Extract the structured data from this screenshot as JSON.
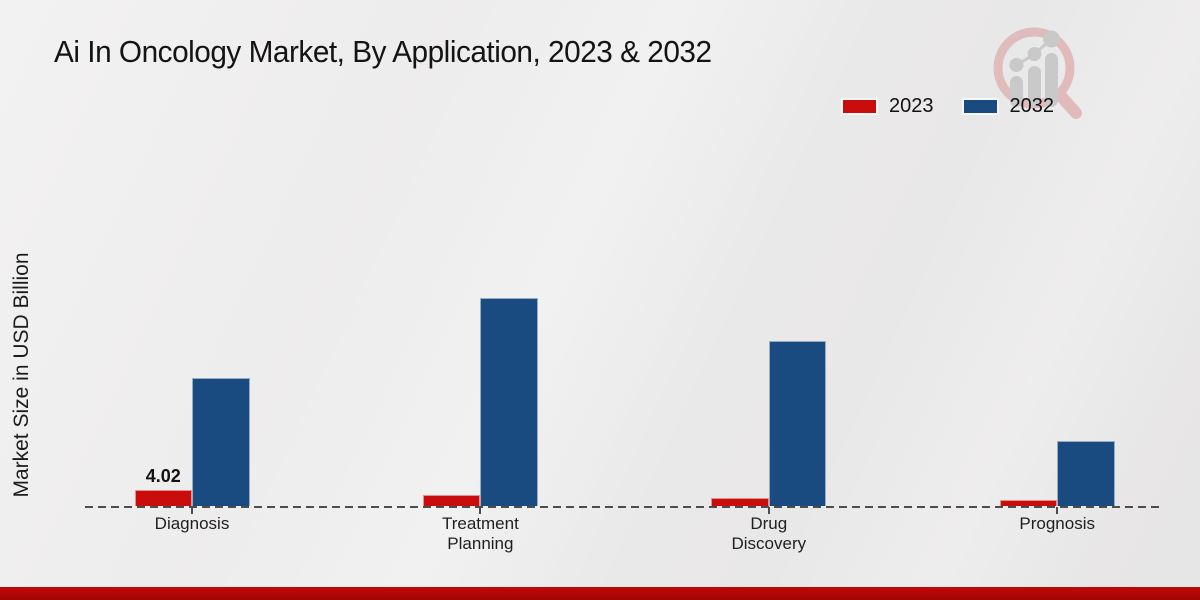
{
  "page": {
    "title": "Ai In Oncology Market, By Application, 2023 & 2032"
  },
  "chart_data": {
    "type": "bar",
    "title": "Ai In Oncology Market, By Application, 2023 & 2032",
    "xlabel": "",
    "ylabel": "Market Size in USD Billion",
    "categories": [
      "Diagnosis",
      "Treatment Planning",
      "Drug Discovery",
      "Prognosis"
    ],
    "series": [
      {
        "name": "2023",
        "color": "#c90d0d",
        "values": [
          4.02,
          2.75,
          2.15,
          1.6
        ]
      },
      {
        "name": "2032",
        "color": "#1a4b80",
        "values": [
          31.2,
          50.7,
          40.4,
          16.0
        ]
      }
    ],
    "value_labels": [
      {
        "series": "2023",
        "category": "Diagnosis",
        "text": "4.02"
      }
    ],
    "ylim": [
      0,
      55
    ],
    "gridlines": false,
    "baseline_style": "dashed",
    "legend_position": "top-right",
    "units": "USD Billion"
  },
  "watermark": {
    "icon": "magnifier-bar-chart",
    "ring_color": "#dfb0b0",
    "bars_color": "#c9c9c9"
  },
  "footer": {
    "band_color": "#b30606"
  }
}
